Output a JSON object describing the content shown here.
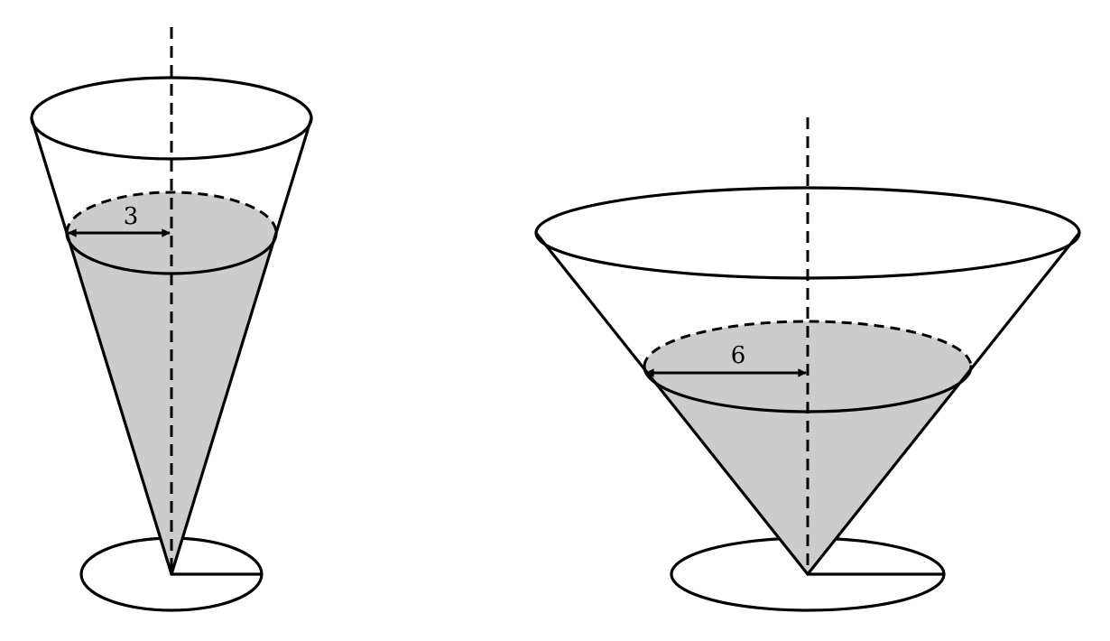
{
  "diagram": {
    "water_color": "#cccccc",
    "line_color": "#000000",
    "cones": [
      {
        "id": "narrow-cone",
        "radius_label": "3"
      },
      {
        "id": "wide-cone",
        "radius_label": "6"
      }
    ]
  }
}
